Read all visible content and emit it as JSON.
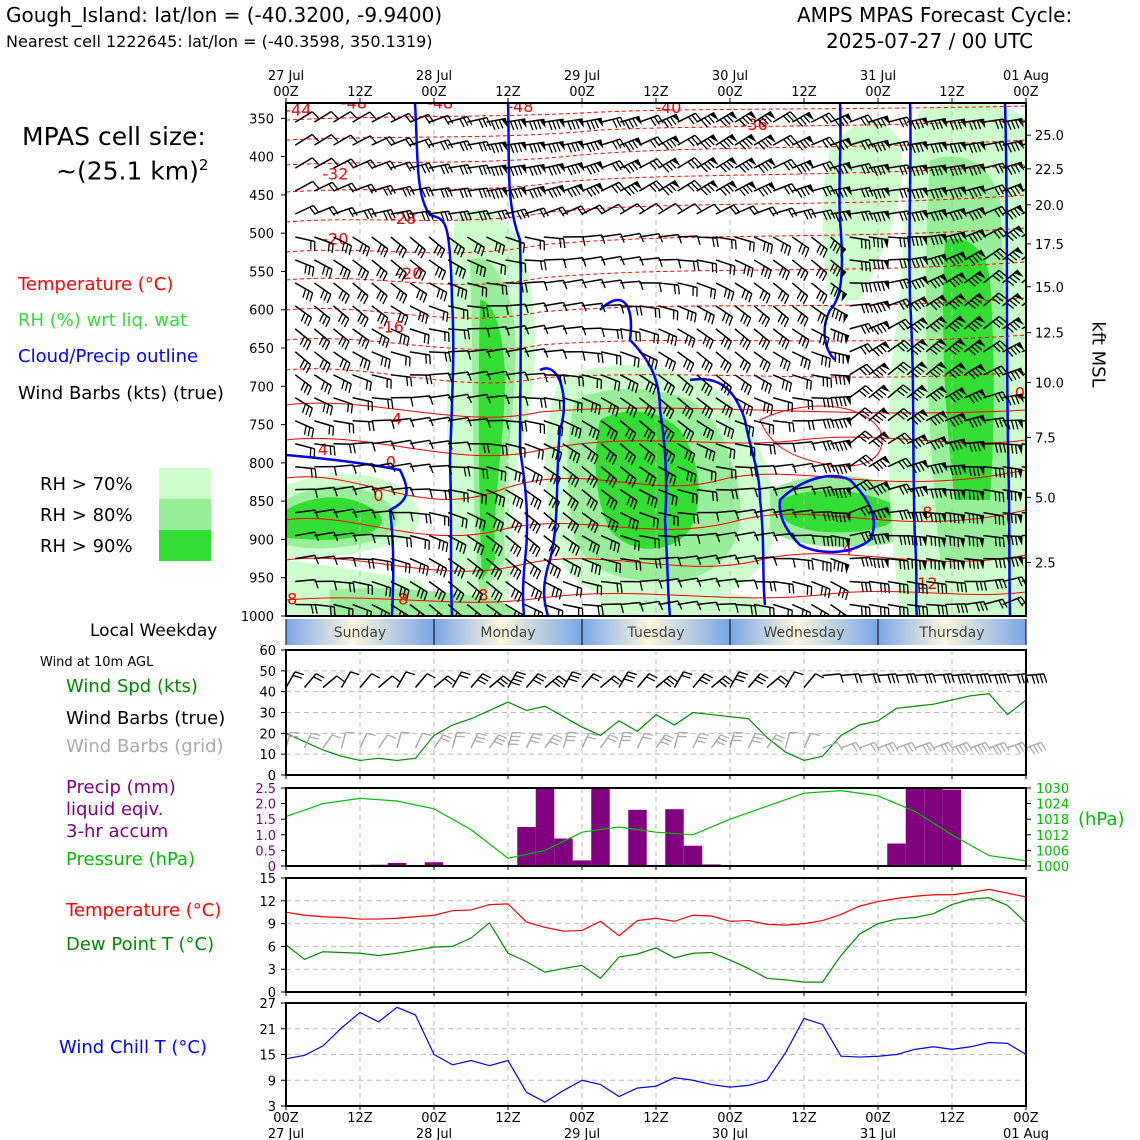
{
  "header": {
    "site_title": "Gough_Island: lat/lon = (-40.3200, -9.9400)",
    "nearest_cell": "Nearest cell 1222645: lat/lon = (-40.3598, 350.1319)",
    "cycle_line1": "AMPS MPAS Forecast Cycle:",
    "cycle_line2": "2025-07-27 / 00 UTC"
  },
  "cell_size": {
    "line1": "MPAS cell size:",
    "line2": "~(25.1 km)",
    "sup": "2"
  },
  "legend_main": {
    "temperature": "Temperature (°C)",
    "rh": "RH (%) wrt liq. wat",
    "cloud": "Cloud/Precip outline",
    "wind": "Wind Barbs (kts) (true)",
    "rh70": "RH > 70%",
    "rh80": "RH > 80%",
    "rh90": "RH > 90%"
  },
  "colors": {
    "temperature": "#ff0000",
    "rh_label": "#33dd33",
    "rh70": "#ccffcc",
    "rh80": "#99ee99",
    "rh90": "#33dd33",
    "cloud": "#0000ff",
    "wind_speed": "#008800",
    "precip": "#800080",
    "pressure": "#00bb00",
    "dewpoint": "#008800",
    "windchill": "#0000ff",
    "grid_barbs": "#aaaaaa"
  },
  "time_axis": {
    "top_labels": [
      {
        "hour": 0,
        "l1": "27 Jul",
        "l2": "00Z"
      },
      {
        "hour": 12,
        "l1": "",
        "l2": "12Z"
      },
      {
        "hour": 24,
        "l1": "28 Jul",
        "l2": "00Z"
      },
      {
        "hour": 36,
        "l1": "",
        "l2": "12Z"
      },
      {
        "hour": 48,
        "l1": "29 Jul",
        "l2": "00Z"
      },
      {
        "hour": 60,
        "l1": "",
        "l2": "12Z"
      },
      {
        "hour": 72,
        "l1": "30 Jul",
        "l2": "00Z"
      },
      {
        "hour": 84,
        "l1": "",
        "l2": "12Z"
      },
      {
        "hour": 96,
        "l1": "31 Jul",
        "l2": "00Z"
      },
      {
        "hour": 108,
        "l1": "",
        "l2": "12Z"
      },
      {
        "hour": 120,
        "l1": "01 Aug",
        "l2": "00Z"
      }
    ],
    "bottom_labels": [
      {
        "hour": 0,
        "l1": "00Z",
        "l2": "27 Jul"
      },
      {
        "hour": 12,
        "l1": "12Z",
        "l2": ""
      },
      {
        "hour": 24,
        "l1": "00Z",
        "l2": "28 Jul"
      },
      {
        "hour": 36,
        "l1": "12Z",
        "l2": ""
      },
      {
        "hour": 48,
        "l1": "00Z",
        "l2": "29 Jul"
      },
      {
        "hour": 60,
        "l1": "12Z",
        "l2": ""
      },
      {
        "hour": 72,
        "l1": "00Z",
        "l2": "30 Jul"
      },
      {
        "hour": 84,
        "l1": "12Z",
        "l2": ""
      },
      {
        "hour": 96,
        "l1": "00Z",
        "l2": "31 Jul"
      },
      {
        "hour": 108,
        "l1": "12Z",
        "l2": ""
      },
      {
        "hour": 120,
        "l1": "00Z",
        "l2": "01 Aug"
      }
    ]
  },
  "weekday": {
    "title": "Local Weekday",
    "days": [
      {
        "name": "Sunday",
        "start": 0,
        "end": 24
      },
      {
        "name": "Monday",
        "start": 24,
        "end": 48
      },
      {
        "name": "Tuesday",
        "start": 48,
        "end": 72
      },
      {
        "name": "Wednesday",
        "start": 72,
        "end": 96
      },
      {
        "name": "Thursday",
        "start": 96,
        "end": 120
      }
    ]
  },
  "chart_data": [
    {
      "type": "heatmap",
      "pressure_ticks": [
        350,
        400,
        450,
        500,
        550,
        600,
        650,
        700,
        750,
        800,
        850,
        900,
        950,
        1000
      ],
      "kft_ticks": [
        "25.0",
        "22.5",
        "20.0",
        "17.5",
        "15.0",
        "12.5",
        "10.0",
        "7.5",
        "5.0",
        "2.5"
      ],
      "kft_pressure": [
        {
          "v": "25.0",
          "p": 372
        },
        {
          "v": "22.5",
          "p": 416
        },
        {
          "v": "20.0",
          "p": 463
        },
        {
          "v": "17.5",
          "p": 514
        },
        {
          "v": "15.0",
          "p": 570
        },
        {
          "v": "12.5",
          "p": 630
        },
        {
          "v": "10.0",
          "p": 695
        },
        {
          "v": "7.5",
          "p": 767
        },
        {
          "v": "5.0",
          "p": 845
        },
        {
          "v": "2.5",
          "p": 930
        }
      ],
      "right_axis_label": "kft MSL",
      "ylim": [
        330,
        1000
      ],
      "xlim": [
        0,
        120
      ],
      "temp_labels": [
        {
          "t": 2,
          "p": 346,
          "text": "-44"
        },
        {
          "t": 11,
          "p": 337,
          "text": "-48"
        },
        {
          "t": 25,
          "p": 337,
          "text": "-48"
        },
        {
          "t": 38,
          "p": 342,
          "text": "-48"
        },
        {
          "t": 62,
          "p": 343,
          "text": "-40"
        },
        {
          "t": 76,
          "p": 365,
          "text": "-36"
        },
        {
          "t": 102,
          "p": 325,
          "text": "-44"
        },
        {
          "t": 8,
          "p": 430,
          "text": "-32"
        },
        {
          "t": 19,
          "p": 488,
          "text": "-28"
        },
        {
          "t": 8,
          "p": 515,
          "text": "-20"
        },
        {
          "t": 20,
          "p": 560,
          "text": "-20"
        },
        {
          "t": 6,
          "p": 790,
          "text": "4"
        },
        {
          "t": 17,
          "p": 630,
          "text": "-16"
        },
        {
          "t": 18,
          "p": 750,
          "text": "4"
        },
        {
          "t": 17,
          "p": 806,
          "text": "0"
        },
        {
          "t": 15,
          "p": 850,
          "text": "0"
        },
        {
          "t": 1,
          "p": 985,
          "text": "8"
        },
        {
          "t": 19,
          "p": 985,
          "text": "8"
        },
        {
          "t": 32,
          "p": 980,
          "text": "8"
        },
        {
          "t": 91,
          "p": 920,
          "text": "4"
        },
        {
          "t": 104,
          "p": 872,
          "text": "8"
        },
        {
          "t": 104,
          "p": 965,
          "text": "12"
        },
        {
          "t": 119,
          "p": 716,
          "text": "0"
        }
      ],
      "temp_color": "#ff0000"
    },
    {
      "type": "line",
      "title": "Wind at 10m AGL",
      "series": [
        {
          "name": "Wind Spd (kts)",
          "x": [
            0,
            3,
            6,
            9,
            12,
            15,
            18,
            21,
            24,
            27,
            30,
            33,
            36,
            39,
            42,
            45,
            48,
            51,
            54,
            57,
            60,
            63,
            66,
            69,
            72,
            75,
            78,
            81,
            84,
            87,
            90,
            93,
            96,
            99,
            102,
            105,
            108,
            111,
            114,
            117,
            120
          ],
          "values": [
            20,
            16,
            12,
            9,
            7,
            8,
            7,
            8,
            19,
            24,
            27,
            31,
            35,
            31,
            33,
            28,
            23,
            19,
            26,
            21,
            29,
            24,
            30,
            29,
            28,
            27,
            18,
            11,
            7,
            9,
            19,
            24,
            26,
            32,
            33,
            34,
            36,
            38,
            39,
            29,
            36
          ]
        }
      ],
      "extra_labels": [
        "Wind Barbs (true)",
        "Wind Barbs (grid)"
      ],
      "ylim": [
        0,
        60
      ],
      "yticks": [
        0,
        10,
        20,
        30,
        40,
        50,
        60
      ]
    },
    {
      "type": "bar",
      "series": [
        {
          "name": "Precip (mm) liquid eqiv. 3-hr accum",
          "x": [
            15,
            18,
            24,
            39,
            42,
            45,
            48,
            51,
            54,
            57,
            60,
            63,
            66,
            69,
            72,
            75,
            78,
            81,
            84,
            87,
            90,
            93,
            96,
            99,
            102,
            105,
            108,
            111
          ],
          "values": [
            0.04,
            0.1,
            0.12,
            1.25,
            2.5,
            0.88,
            0.18,
            2.5,
            0.0,
            1.8,
            0.0,
            1.82,
            0.65,
            0.05,
            0.0,
            0.0,
            0.0,
            0.0,
            0.0,
            0.0,
            0.0,
            0.0,
            0.0,
            0.72,
            2.5,
            2.5,
            2.45,
            0.0
          ]
        },
        {
          "name": "Pressure (hPa)",
          "x": [
            0,
            6,
            12,
            18,
            24,
            30,
            36,
            42,
            48,
            54,
            60,
            66,
            72,
            78,
            84,
            90,
            96,
            102,
            108,
            114,
            120
          ],
          "values": [
            1019,
            1024,
            1026,
            1025,
            1022,
            1014,
            1003,
            1006,
            1013,
            1015,
            1013,
            1012,
            1018,
            1023,
            1028,
            1029,
            1027,
            1021,
            1012,
            1004,
            1002
          ]
        }
      ],
      "precip_label_lines": [
        "Precip (mm)",
        "liquid eqiv.",
        "3-hr accum"
      ],
      "pressure_label": "Pressure (hPa)",
      "right_unit": "(hPa)",
      "ylim": [
        0,
        2.5
      ],
      "yticks": [
        "0",
        "0.5",
        "1.0",
        "1.5",
        "2.0",
        "2.5"
      ],
      "y2lim": [
        1000,
        1030
      ],
      "y2ticks": [
        "1000",
        "1006",
        "1012",
        "1018",
        "1024",
        "1030"
      ]
    },
    {
      "type": "line",
      "series": [
        {
          "name": "Temperature (°C)",
          "x": [
            0,
            3,
            6,
            9,
            12,
            15,
            18,
            21,
            24,
            27,
            30,
            33,
            36,
            39,
            42,
            45,
            48,
            51,
            54,
            57,
            60,
            63,
            66,
            69,
            72,
            75,
            78,
            81,
            84,
            87,
            90,
            93,
            96,
            99,
            102,
            105,
            108,
            111,
            114,
            117,
            120
          ],
          "values": [
            10.5,
            10.1,
            9.9,
            9.8,
            9.6,
            9.6,
            9.7,
            9.9,
            10.1,
            10.7,
            10.8,
            11.5,
            11.6,
            9.2,
            8.5,
            8.0,
            8.1,
            9.3,
            7.4,
            9.4,
            9.7,
            9.3,
            10.1,
            10.0,
            9.3,
            9.4,
            8.9,
            8.8,
            9.0,
            9.4,
            10.2,
            11.3,
            11.9,
            12.3,
            12.6,
            12.8,
            12.8,
            13.1,
            13.5,
            13.0,
            12.5
          ]
        },
        {
          "name": "Dew Point T (°C)",
          "x": [
            0,
            3,
            6,
            9,
            12,
            15,
            18,
            21,
            24,
            27,
            30,
            33,
            36,
            39,
            42,
            45,
            48,
            51,
            54,
            57,
            60,
            63,
            66,
            69,
            72,
            75,
            78,
            81,
            84,
            87,
            90,
            93,
            96,
            99,
            102,
            105,
            108,
            111,
            114,
            117,
            120
          ],
          "values": [
            6.2,
            4.3,
            5.3,
            5.2,
            5.1,
            4.8,
            5.1,
            5.5,
            5.9,
            6.0,
            7.1,
            9.1,
            5.1,
            4.0,
            2.6,
            3.1,
            3.5,
            1.8,
            4.6,
            5.0,
            5.8,
            4.5,
            5.1,
            5.2,
            4.2,
            3.1,
            1.8,
            1.6,
            1.3,
            1.3,
            4.8,
            7.6,
            9.0,
            9.6,
            9.8,
            10.3,
            11.5,
            12.2,
            12.4,
            11.4,
            9.1
          ]
        }
      ],
      "ylim": [
        0,
        15
      ],
      "yticks": [
        0,
        3,
        6,
        9,
        12,
        15
      ]
    },
    {
      "type": "line",
      "series": [
        {
          "name": "Wind Chill T (°C)",
          "x": [
            0,
            3,
            6,
            9,
            12,
            15,
            18,
            21,
            24,
            27,
            30,
            33,
            36,
            39,
            42,
            45,
            48,
            51,
            54,
            57,
            60,
            63,
            66,
            69,
            72,
            75,
            78,
            81,
            84,
            87,
            90,
            93,
            96,
            99,
            102,
            105,
            108,
            111,
            114,
            117,
            120
          ],
          "values": [
            14.0,
            14.8,
            17.0,
            21.2,
            24.8,
            22.6,
            26.0,
            24.2,
            15.0,
            12.6,
            13.6,
            12.4,
            13.6,
            6.2,
            3.9,
            6.6,
            9.0,
            8.0,
            5.2,
            7.2,
            7.6,
            9.6,
            9.0,
            8.0,
            7.4,
            7.8,
            9.0,
            15.4,
            23.4,
            22.0,
            14.6,
            14.4,
            14.6,
            15.0,
            16.2,
            16.8,
            16.2,
            16.8,
            17.8,
            17.6,
            15.0
          ]
        }
      ],
      "ylim": [
        3,
        27
      ],
      "yticks": [
        3,
        9,
        15,
        21,
        27
      ]
    }
  ],
  "panel_labels": {
    "wind_title": "Wind at 10m AGL",
    "wind_spd": "Wind Spd (kts)",
    "wind_barbs_true": "Wind Barbs (true)",
    "wind_barbs_grid": "Wind Barbs (grid)",
    "temperature": "Temperature (°C)",
    "dewpoint": "Dew Point T (°C)",
    "windchill": "Wind Chill T (°C)"
  }
}
